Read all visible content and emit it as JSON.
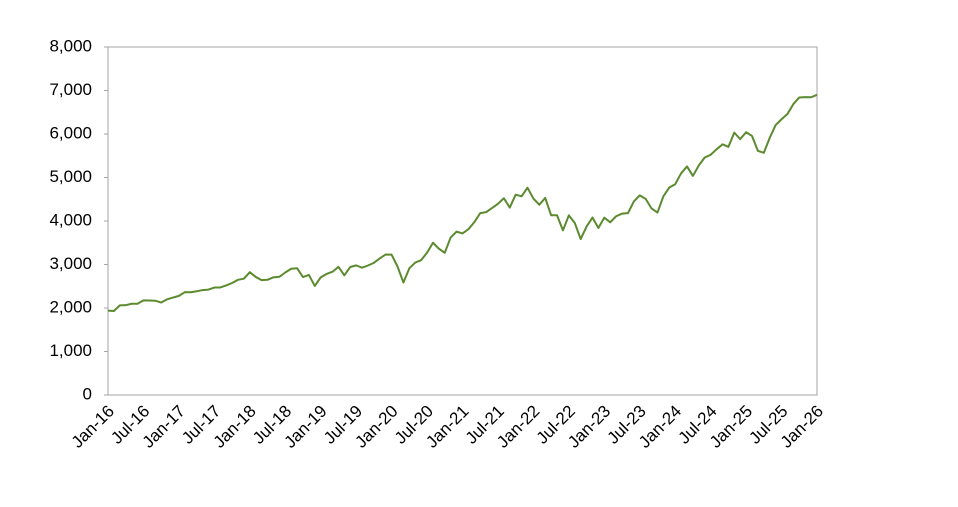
{
  "chart_data": {
    "type": "line",
    "categories": [
      "Jan-16",
      null,
      null,
      null,
      null,
      null,
      "Jul-16",
      null,
      null,
      null,
      null,
      null,
      "Jan-17",
      null,
      null,
      null,
      null,
      null,
      "Jul-17",
      null,
      null,
      null,
      null,
      null,
      "Jan-18",
      null,
      null,
      null,
      null,
      null,
      "Jul-18",
      null,
      null,
      null,
      null,
      null,
      "Jan-19",
      null,
      null,
      null,
      null,
      null,
      "Jul-19",
      null,
      null,
      null,
      null,
      null,
      "Jan-20",
      null,
      null,
      null,
      null,
      null,
      "Jul-20",
      null,
      null,
      null,
      null,
      null,
      "Jan-21",
      null,
      null,
      null,
      null,
      null,
      "Jul-21",
      null,
      null,
      null,
      null,
      null,
      "Jan-22",
      null,
      null,
      null,
      null,
      null,
      "Jul-22",
      null,
      null,
      null,
      null,
      null,
      "Jan-23",
      null,
      null,
      null,
      null,
      null,
      "Jul-23",
      null,
      null,
      null,
      null,
      null,
      "Jan-24",
      null,
      null,
      null,
      null,
      null,
      "Jul-24",
      null,
      null,
      null,
      null,
      null,
      "Jan-25",
      null,
      null,
      null,
      null,
      null,
      "Jul-25",
      null,
      null,
      null,
      null,
      null,
      "Jan-26"
    ],
    "values": [
      1940,
      1932,
      2060,
      2065,
      2097,
      2099,
      2174,
      2171,
      2168,
      2126,
      2199,
      2239,
      2279,
      2364,
      2363,
      2384,
      2412,
      2423,
      2470,
      2472,
      2519,
      2575,
      2648,
      2674,
      2824,
      2714,
      2641,
      2648,
      2705,
      2718,
      2816,
      2902,
      2914,
      2712,
      2760,
      2507,
      2704,
      2784,
      2834,
      2946,
      2752,
      2942,
      2980,
      2926,
      2977,
      3038,
      3141,
      3231,
      3226,
      2954,
      2585,
      2912,
      3044,
      3100,
      3271,
      3500,
      3363,
      3270,
      3622,
      3756,
      3714,
      3811,
      3973,
      4181,
      4204,
      4298,
      4395,
      4523,
      4308,
      4605,
      4567,
      4766,
      4516,
      4374,
      4530,
      4132,
      4132,
      3785,
      4130,
      3955,
      3586,
      3872,
      4080,
      3840,
      4077,
      3970,
      4109,
      4169,
      4180,
      4450,
      4589,
      4508,
      4288,
      4194,
      4568,
      4770,
      4846,
      5096,
      5254,
      5036,
      5278,
      5460,
      5522,
      5648,
      5762,
      5705,
      6032,
      5882,
      6041,
      5955,
      5612,
      5569,
      5912,
      6205,
      6339,
      6460,
      6688,
      6840,
      6849,
      6845,
      6900
    ],
    "color": "#5b8a2f",
    "ylim": [
      0,
      8000
    ],
    "yticks": [
      0,
      {
        "value": 1000,
        "label": "1,000"
      },
      {
        "value": 2000,
        "label": "2,000"
      },
      {
        "value": 3000,
        "label": "3,000"
      },
      {
        "value": 4000,
        "label": "4,000"
      },
      {
        "value": 5000,
        "label": "5,000"
      },
      {
        "value": 6000,
        "label": "6,000"
      },
      {
        "value": 7000,
        "label": "7,000"
      },
      {
        "value": 8000,
        "label": "8,000"
      }
    ]
  }
}
